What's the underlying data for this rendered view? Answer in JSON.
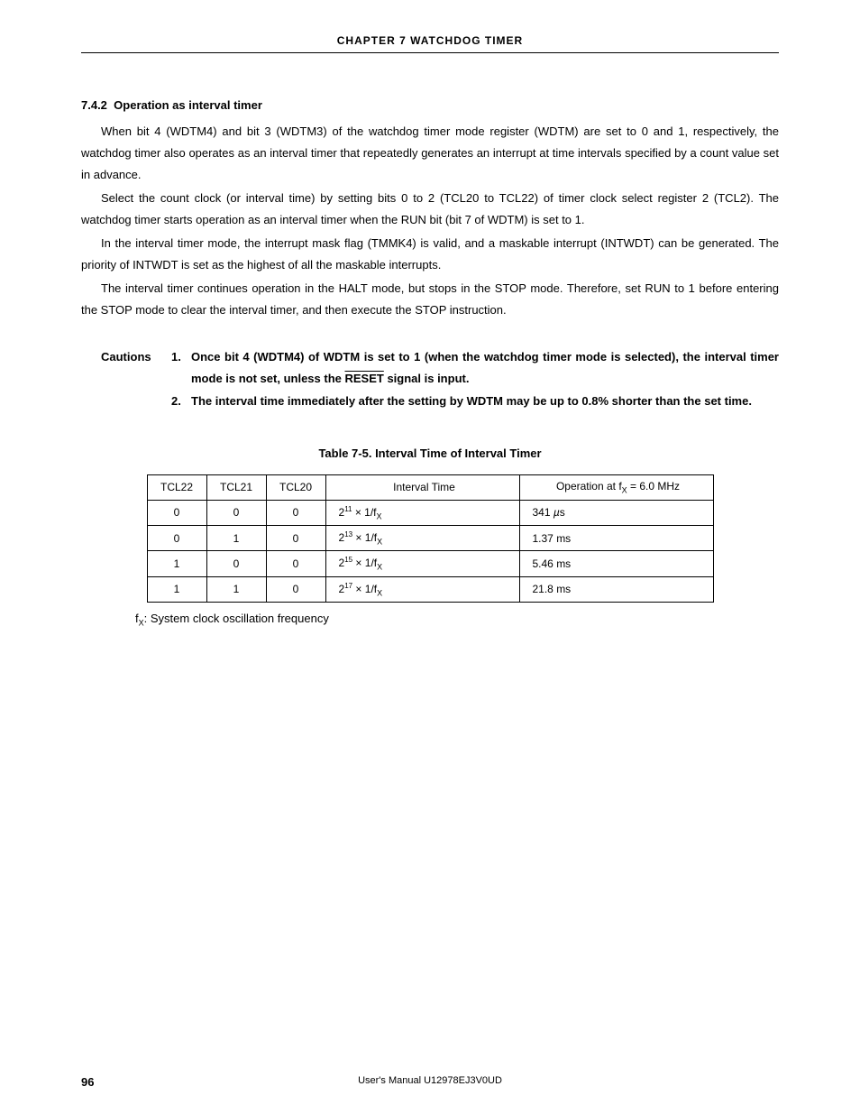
{
  "header": {
    "chapter": "CHAPTER  7    WATCHDOG  TIMER"
  },
  "section": {
    "number": "7.4.2",
    "title": "Operation as interval timer"
  },
  "paragraphs": {
    "p1": "When bit 4 (WDTM4) and bit 3 (WDTM3) of the watchdog timer mode register (WDTM) are set to 0 and 1, respectively, the watchdog timer also operates as an interval timer that repeatedly generates an interrupt at time intervals specified by a count value set in advance.",
    "p2": "Select the count clock (or interval time) by setting bits 0 to 2 (TCL20 to TCL22) of timer clock select register 2 (TCL2).  The watchdog timer starts operation as an interval timer when the RUN bit (bit 7 of WDTM) is set to 1.",
    "p3": "In the interval timer mode, the interrupt mask flag (TMMK4) is valid, and a maskable interrupt (INTWDT) can be generated.  The priority of INTWDT is set as the highest of all the maskable interrupts.",
    "p4": "The interval timer continues operation in the HALT mode, but stops in the STOP mode.  Therefore, set RUN to 1 before entering the STOP mode to clear the interval timer, and then execute the STOP instruction."
  },
  "cautions": {
    "label": "Cautions",
    "items": [
      {
        "num": "1.",
        "pre": "Once bit 4 (WDTM4) of WDTM is set to 1 (when the watchdog timer mode is selected), the interval timer mode is not set, unless the ",
        "reset": "RESET",
        "post": " signal is input."
      },
      {
        "num": "2.",
        "text": "The interval time immediately after the setting by WDTM may be up to 0.8% shorter than the set time."
      }
    ]
  },
  "table": {
    "title": "Table 7-5.  Interval Time of Interval Timer",
    "columns": [
      "TCL22",
      "TCL21",
      "TCL20",
      "Interval Time",
      "Operation at fX = 6.0 MHz"
    ],
    "col4_prefix": "Operation at f",
    "col4_sub": "X",
    "col4_suffix": " = 6.0 MHz",
    "rows": [
      {
        "c0": "0",
        "c1": "0",
        "c2": "0",
        "exp": "11",
        "op_val": "341 ",
        "op_unit": "µ",
        "op_suffix": "s"
      },
      {
        "c0": "0",
        "c1": "1",
        "c2": "0",
        "exp": "13",
        "op_val": "1.37 ms",
        "op_unit": "",
        "op_suffix": ""
      },
      {
        "c0": "1",
        "c1": "0",
        "c2": "0",
        "exp": "15",
        "op_val": "5.46 ms",
        "op_unit": "",
        "op_suffix": ""
      },
      {
        "c0": "1",
        "c1": "1",
        "c2": "0",
        "exp": "17",
        "op_val": "21.8 ms",
        "op_unit": "",
        "op_suffix": ""
      }
    ],
    "interval_base": "2",
    "interval_mid": " × 1/f",
    "interval_sub": "X",
    "note_prefix": "f",
    "note_sub": "X",
    "note_suffix": ":  System clock oscillation frequency"
  },
  "footer": {
    "page": "96",
    "manual": "User's Manual  U12978EJ3V0UD"
  }
}
